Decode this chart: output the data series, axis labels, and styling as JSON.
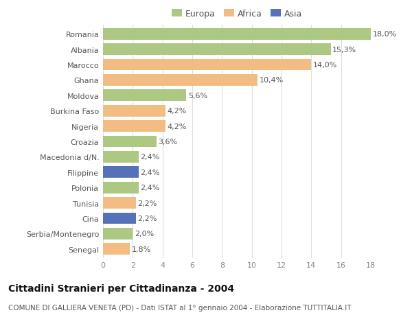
{
  "countries": [
    "Romania",
    "Albania",
    "Marocco",
    "Ghana",
    "Moldova",
    "Burkina Faso",
    "Nigeria",
    "Croazia",
    "Macedonia d/N.",
    "Filippine",
    "Polonia",
    "Tunisia",
    "Cina",
    "Serbia/Montenegro",
    "Senegal"
  ],
  "values": [
    18.0,
    15.3,
    14.0,
    10.4,
    5.6,
    4.2,
    4.2,
    3.6,
    2.4,
    2.4,
    2.4,
    2.2,
    2.2,
    2.0,
    1.8
  ],
  "labels": [
    "18,0%",
    "15,3%",
    "14,0%",
    "10,4%",
    "5,6%",
    "4,2%",
    "4,2%",
    "3,6%",
    "2,4%",
    "2,4%",
    "2,4%",
    "2,2%",
    "2,2%",
    "2,0%",
    "1,8%"
  ],
  "continents": [
    "Europa",
    "Europa",
    "Africa",
    "Africa",
    "Europa",
    "Africa",
    "Africa",
    "Europa",
    "Europa",
    "Asia",
    "Europa",
    "Africa",
    "Asia",
    "Europa",
    "Africa"
  ],
  "continent_colors": {
    "Europa": "#adc882",
    "Africa": "#f2bc82",
    "Asia": "#5572b8"
  },
  "legend_order": [
    "Europa",
    "Africa",
    "Asia"
  ],
  "legend_colors": [
    "#adc882",
    "#f2bc82",
    "#5572b8"
  ],
  "title_main": "Cittadini Stranieri per Cittadinanza - 2004",
  "title_sub": "COMUNE DI GALLIERA VENETA (PD) - Dati ISTAT al 1° gennaio 2004 - Elaborazione TUTTITALIA.IT",
  "xlim": [
    0,
    18
  ],
  "xticks": [
    0,
    2,
    4,
    6,
    8,
    10,
    12,
    14,
    16,
    18
  ],
  "background_color": "#ffffff",
  "grid_color": "#dddddd",
  "bar_height": 0.75,
  "tick_fontsize": 8,
  "title_fontsize": 10,
  "subtitle_fontsize": 7.5,
  "legend_fontsize": 9,
  "value_label_fontsize": 8
}
